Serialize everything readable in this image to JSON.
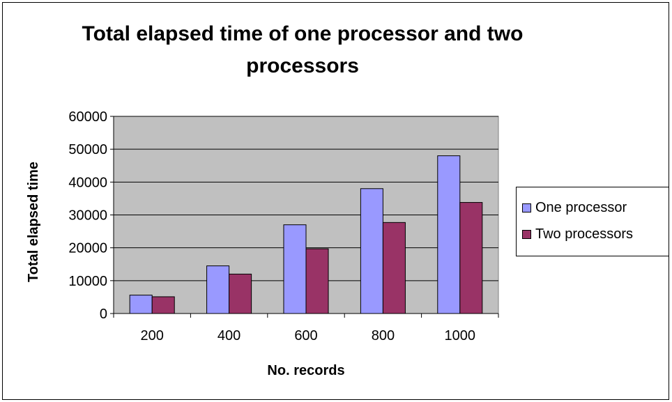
{
  "chart_data": {
    "type": "bar",
    "title": "Total elapsed time of one processor and two processors",
    "xlabel": "No. records",
    "ylabel": "Total elapsed time",
    "categories": [
      "200",
      "400",
      "600",
      "800",
      "1000"
    ],
    "series": [
      {
        "name": "One processor",
        "color": "#9999ff",
        "values": [
          5600,
          14500,
          27000,
          38000,
          48000
        ]
      },
      {
        "name": "Two processors",
        "color": "#993366",
        "values": [
          5100,
          12000,
          19700,
          27700,
          33800
        ]
      }
    ],
    "ylim": [
      0,
      60000
    ],
    "yticks": [
      "0",
      "10000",
      "20000",
      "30000",
      "40000",
      "50000",
      "60000"
    ],
    "grid": true,
    "plot_background": "#c0c0c0",
    "legend_position": "right"
  }
}
